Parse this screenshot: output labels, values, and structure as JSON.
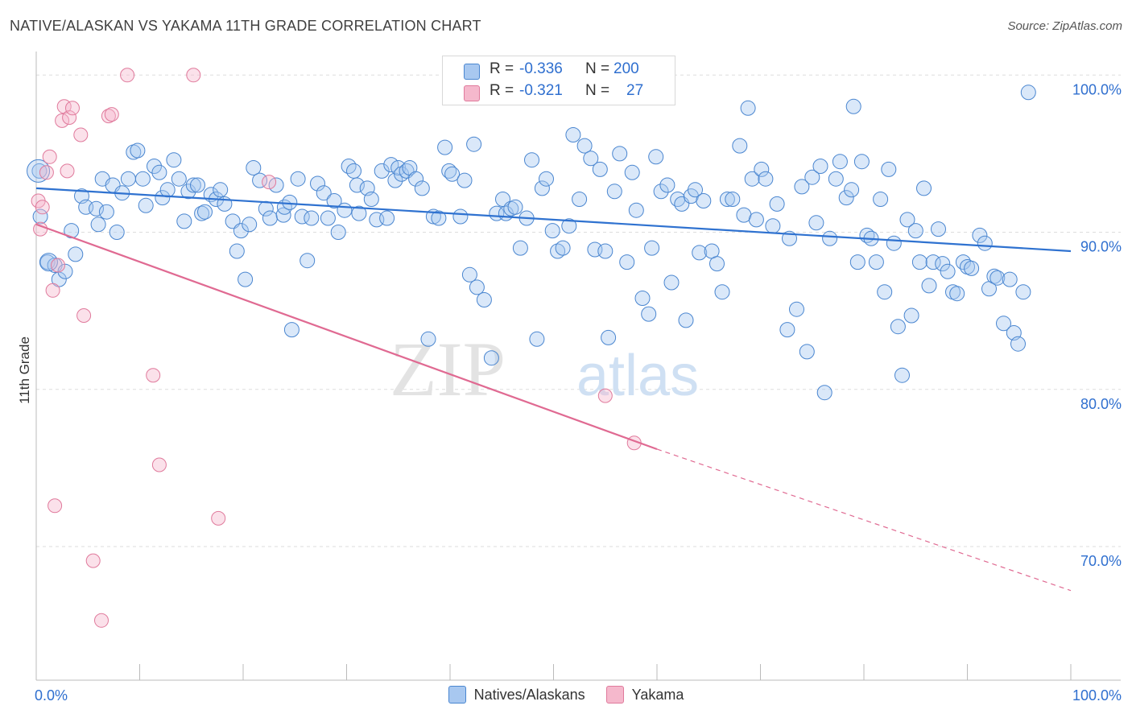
{
  "header": {
    "title": "NATIVE/ALASKAN VS YAKAMA 11TH GRADE CORRELATION CHART",
    "source": "Source: ZipAtlas.com"
  },
  "colors": {
    "blue_fill": "#a8c8f0",
    "blue_stroke": "#4a86d0",
    "blue_line": "#2f72d0",
    "pink_fill": "#f5b8cc",
    "pink_stroke": "#e07a9c",
    "pink_line": "#e06a92",
    "value_text": "#2f6fcf",
    "grid": "#dddddd"
  },
  "stats_legend": {
    "r_label": "R =",
    "n_label": "N =",
    "rows": [
      {
        "series": "Natives/Alaskans",
        "r": "-0.336",
        "n": "200"
      },
      {
        "series": "Yakama",
        "r": "-0.321",
        "n": "27"
      }
    ]
  },
  "legend": {
    "items": [
      {
        "label": "Natives/Alaskans"
      },
      {
        "label": "Yakama"
      }
    ]
  },
  "chart_data": {
    "type": "scatter",
    "title": "NATIVE/ALASKAN VS YAKAMA 11TH GRADE CORRELATION CHART",
    "xlabel": "",
    "ylabel": "11th Grade",
    "xlim": [
      0,
      100
    ],
    "ylim": [
      61.5,
      101.5
    ],
    "x_tick_labels": [
      {
        "x": 0,
        "label": "0.0%"
      },
      {
        "x": 100,
        "label": "100.0%"
      }
    ],
    "y_tick_labels": [
      {
        "y": 100,
        "label": "100.0%"
      },
      {
        "y": 90,
        "label": "90.0%"
      },
      {
        "y": 80,
        "label": "80.0%"
      },
      {
        "y": 70,
        "label": "70.0%"
      }
    ],
    "watermark": {
      "zip": "ZIP",
      "atlas": "atlas"
    },
    "series": [
      {
        "name": "Natives/Alaskans",
        "trend": {
          "x0": 0,
          "y0": 92.8,
          "x1": 100,
          "y1": 88.8
        },
        "points": [
          [
            0.3,
            93.9
          ],
          [
            0.4,
            91.0
          ],
          [
            1.1,
            88.1
          ],
          [
            1.8,
            87.9
          ],
          [
            2.2,
            87.0
          ],
          [
            2.8,
            87.5
          ],
          [
            3.4,
            90.1
          ],
          [
            3.8,
            88.6
          ],
          [
            4.4,
            92.3
          ],
          [
            4.8,
            91.6
          ],
          [
            5.8,
            91.5
          ],
          [
            6.0,
            90.5
          ],
          [
            6.4,
            93.4
          ],
          [
            6.8,
            91.3
          ],
          [
            7.4,
            93.0
          ],
          [
            7.8,
            90.0
          ],
          [
            8.3,
            92.5
          ],
          [
            8.9,
            93.4
          ],
          [
            9.4,
            95.1
          ],
          [
            9.8,
            95.2
          ],
          [
            10.3,
            93.4
          ],
          [
            10.6,
            91.7
          ],
          [
            11.4,
            94.2
          ],
          [
            11.9,
            93.8
          ],
          [
            12.2,
            92.2
          ],
          [
            12.7,
            92.7
          ],
          [
            13.3,
            94.6
          ],
          [
            13.8,
            93.4
          ],
          [
            14.3,
            90.7
          ],
          [
            14.7,
            92.6
          ],
          [
            15.2,
            93.0
          ],
          [
            15.6,
            93.0
          ],
          [
            16.0,
            91.2
          ],
          [
            16.3,
            91.3
          ],
          [
            16.9,
            92.4
          ],
          [
            17.4,
            92.1
          ],
          [
            17.8,
            92.7
          ],
          [
            18.2,
            91.8
          ],
          [
            19.0,
            90.7
          ],
          [
            19.4,
            88.8
          ],
          [
            19.8,
            90.1
          ],
          [
            20.2,
            87.0
          ],
          [
            20.6,
            90.5
          ],
          [
            21.0,
            94.1
          ],
          [
            21.6,
            93.3
          ],
          [
            22.2,
            91.5
          ],
          [
            22.6,
            90.9
          ],
          [
            23.2,
            93.0
          ],
          [
            23.9,
            91.1
          ],
          [
            24.0,
            91.6
          ],
          [
            24.5,
            91.9
          ],
          [
            24.7,
            83.8
          ],
          [
            25.3,
            93.4
          ],
          [
            25.7,
            91.0
          ],
          [
            26.2,
            88.2
          ],
          [
            26.6,
            90.9
          ],
          [
            27.2,
            93.1
          ],
          [
            27.8,
            92.5
          ],
          [
            28.2,
            90.9
          ],
          [
            28.8,
            92.0
          ],
          [
            29.2,
            90.0
          ],
          [
            29.8,
            91.4
          ],
          [
            30.2,
            94.2
          ],
          [
            30.7,
            93.9
          ],
          [
            31.0,
            93.0
          ],
          [
            31.2,
            91.2
          ],
          [
            32.0,
            92.8
          ],
          [
            32.4,
            92.1
          ],
          [
            32.9,
            90.8
          ],
          [
            33.4,
            93.9
          ],
          [
            33.9,
            90.9
          ],
          [
            34.3,
            94.3
          ],
          [
            34.7,
            93.3
          ],
          [
            35.0,
            94.1
          ],
          [
            35.3,
            93.7
          ],
          [
            35.8,
            93.9
          ],
          [
            36.1,
            94.1
          ],
          [
            36.7,
            93.4
          ],
          [
            37.3,
            92.8
          ],
          [
            37.9,
            83.2
          ],
          [
            38.4,
            91.0
          ],
          [
            38.9,
            90.9
          ],
          [
            39.5,
            95.4
          ],
          [
            39.9,
            93.9
          ],
          [
            40.2,
            93.7
          ],
          [
            41.0,
            91.0
          ],
          [
            41.4,
            93.3
          ],
          [
            41.9,
            87.3
          ],
          [
            42.3,
            95.6
          ],
          [
            42.6,
            86.5
          ],
          [
            43.3,
            85.7
          ],
          [
            44.0,
            82.0
          ],
          [
            44.5,
            91.2
          ],
          [
            45.1,
            92.1
          ],
          [
            45.4,
            91.2
          ],
          [
            45.9,
            91.5
          ],
          [
            46.3,
            91.6
          ],
          [
            46.8,
            89.0
          ],
          [
            47.4,
            90.9
          ],
          [
            47.9,
            94.6
          ],
          [
            48.4,
            83.2
          ],
          [
            48.9,
            92.8
          ],
          [
            49.3,
            93.4
          ],
          [
            49.9,
            90.1
          ],
          [
            50.4,
            88.8
          ],
          [
            50.9,
            89.0
          ],
          [
            51.5,
            90.4
          ],
          [
            51.9,
            96.2
          ],
          [
            52.5,
            92.1
          ],
          [
            53.0,
            95.5
          ],
          [
            53.6,
            94.7
          ],
          [
            54.0,
            88.9
          ],
          [
            54.5,
            94.0
          ],
          [
            55.0,
            88.8
          ],
          [
            55.3,
            83.3
          ],
          [
            55.9,
            92.6
          ],
          [
            56.4,
            95.0
          ],
          [
            57.1,
            88.1
          ],
          [
            57.6,
            93.8
          ],
          [
            58.0,
            91.4
          ],
          [
            58.6,
            85.8
          ],
          [
            59.2,
            84.8
          ],
          [
            59.5,
            89.0
          ],
          [
            59.9,
            94.8
          ],
          [
            60.4,
            92.6
          ],
          [
            61.0,
            93.0
          ],
          [
            61.4,
            86.8
          ],
          [
            62.0,
            92.1
          ],
          [
            62.4,
            91.8
          ],
          [
            62.8,
            84.4
          ],
          [
            63.3,
            92.3
          ],
          [
            63.7,
            92.7
          ],
          [
            64.1,
            88.7
          ],
          [
            64.5,
            92.0
          ],
          [
            65.3,
            88.8
          ],
          [
            65.8,
            88.0
          ],
          [
            66.3,
            86.2
          ],
          [
            66.8,
            92.1
          ],
          [
            67.3,
            92.1
          ],
          [
            68.0,
            95.5
          ],
          [
            68.4,
            91.1
          ],
          [
            68.8,
            97.9
          ],
          [
            69.2,
            93.4
          ],
          [
            69.6,
            90.8
          ],
          [
            70.1,
            94.0
          ],
          [
            70.5,
            93.4
          ],
          [
            71.2,
            90.4
          ],
          [
            71.6,
            91.8
          ],
          [
            72.6,
            83.8
          ],
          [
            72.8,
            89.6
          ],
          [
            73.5,
            85.1
          ],
          [
            74.0,
            92.9
          ],
          [
            74.5,
            82.4
          ],
          [
            75.0,
            93.5
          ],
          [
            75.4,
            90.6
          ],
          [
            75.8,
            94.2
          ],
          [
            76.2,
            79.8
          ],
          [
            76.7,
            89.6
          ],
          [
            77.3,
            93.4
          ],
          [
            77.7,
            94.5
          ],
          [
            78.3,
            92.2
          ],
          [
            78.8,
            92.7
          ],
          [
            79.0,
            98.0
          ],
          [
            79.4,
            88.1
          ],
          [
            79.8,
            94.5
          ],
          [
            80.3,
            89.8
          ],
          [
            80.7,
            89.6
          ],
          [
            81.2,
            88.1
          ],
          [
            81.6,
            92.1
          ],
          [
            82.0,
            86.2
          ],
          [
            82.4,
            94.0
          ],
          [
            82.9,
            89.3
          ],
          [
            83.3,
            84.0
          ],
          [
            83.7,
            80.9
          ],
          [
            84.2,
            90.8
          ],
          [
            84.6,
            84.7
          ],
          [
            85.0,
            90.1
          ],
          [
            85.4,
            88.1
          ],
          [
            85.8,
            92.8
          ],
          [
            86.3,
            86.6
          ],
          [
            86.7,
            88.1
          ],
          [
            87.2,
            90.2
          ],
          [
            87.6,
            88.0
          ],
          [
            88.1,
            87.5
          ],
          [
            88.6,
            86.2
          ],
          [
            89.0,
            86.1
          ],
          [
            89.6,
            88.1
          ],
          [
            90.0,
            87.8
          ],
          [
            90.4,
            87.7
          ],
          [
            91.2,
            89.8
          ],
          [
            91.7,
            89.3
          ],
          [
            92.1,
            86.4
          ],
          [
            92.6,
            87.2
          ],
          [
            92.9,
            87.1
          ],
          [
            93.5,
            84.2
          ],
          [
            94.1,
            87.0
          ],
          [
            94.5,
            83.6
          ],
          [
            94.9,
            82.9
          ],
          [
            95.4,
            86.2
          ],
          [
            95.9,
            98.9
          ]
        ]
      },
      {
        "name": "Yakama",
        "trend": {
          "x0": 0,
          "y0": 90.5,
          "x1": 60,
          "y1": 76.2
        },
        "trend_dashed": {
          "x0": 60,
          "y0": 76.2,
          "x1": 100,
          "y1": 67.2
        },
        "points": [
          [
            0.2,
            92.0
          ],
          [
            0.4,
            90.2
          ],
          [
            0.6,
            91.6
          ],
          [
            1.0,
            93.8
          ],
          [
            1.3,
            94.8
          ],
          [
            1.6,
            86.3
          ],
          [
            1.8,
            72.6
          ],
          [
            2.1,
            87.9
          ],
          [
            2.5,
            97.1
          ],
          [
            2.7,
            98.0
          ],
          [
            3.0,
            93.9
          ],
          [
            3.2,
            97.3
          ],
          [
            3.5,
            97.9
          ],
          [
            4.3,
            96.2
          ],
          [
            4.6,
            84.7
          ],
          [
            5.5,
            69.1
          ],
          [
            6.3,
            65.3
          ],
          [
            7.0,
            97.4
          ],
          [
            7.3,
            97.5
          ],
          [
            8.8,
            100.0
          ],
          [
            11.3,
            80.9
          ],
          [
            11.9,
            75.2
          ],
          [
            15.2,
            100.0
          ],
          [
            17.6,
            71.8
          ],
          [
            22.5,
            93.2
          ],
          [
            55.0,
            79.6
          ],
          [
            57.8,
            76.6
          ]
        ]
      }
    ]
  }
}
